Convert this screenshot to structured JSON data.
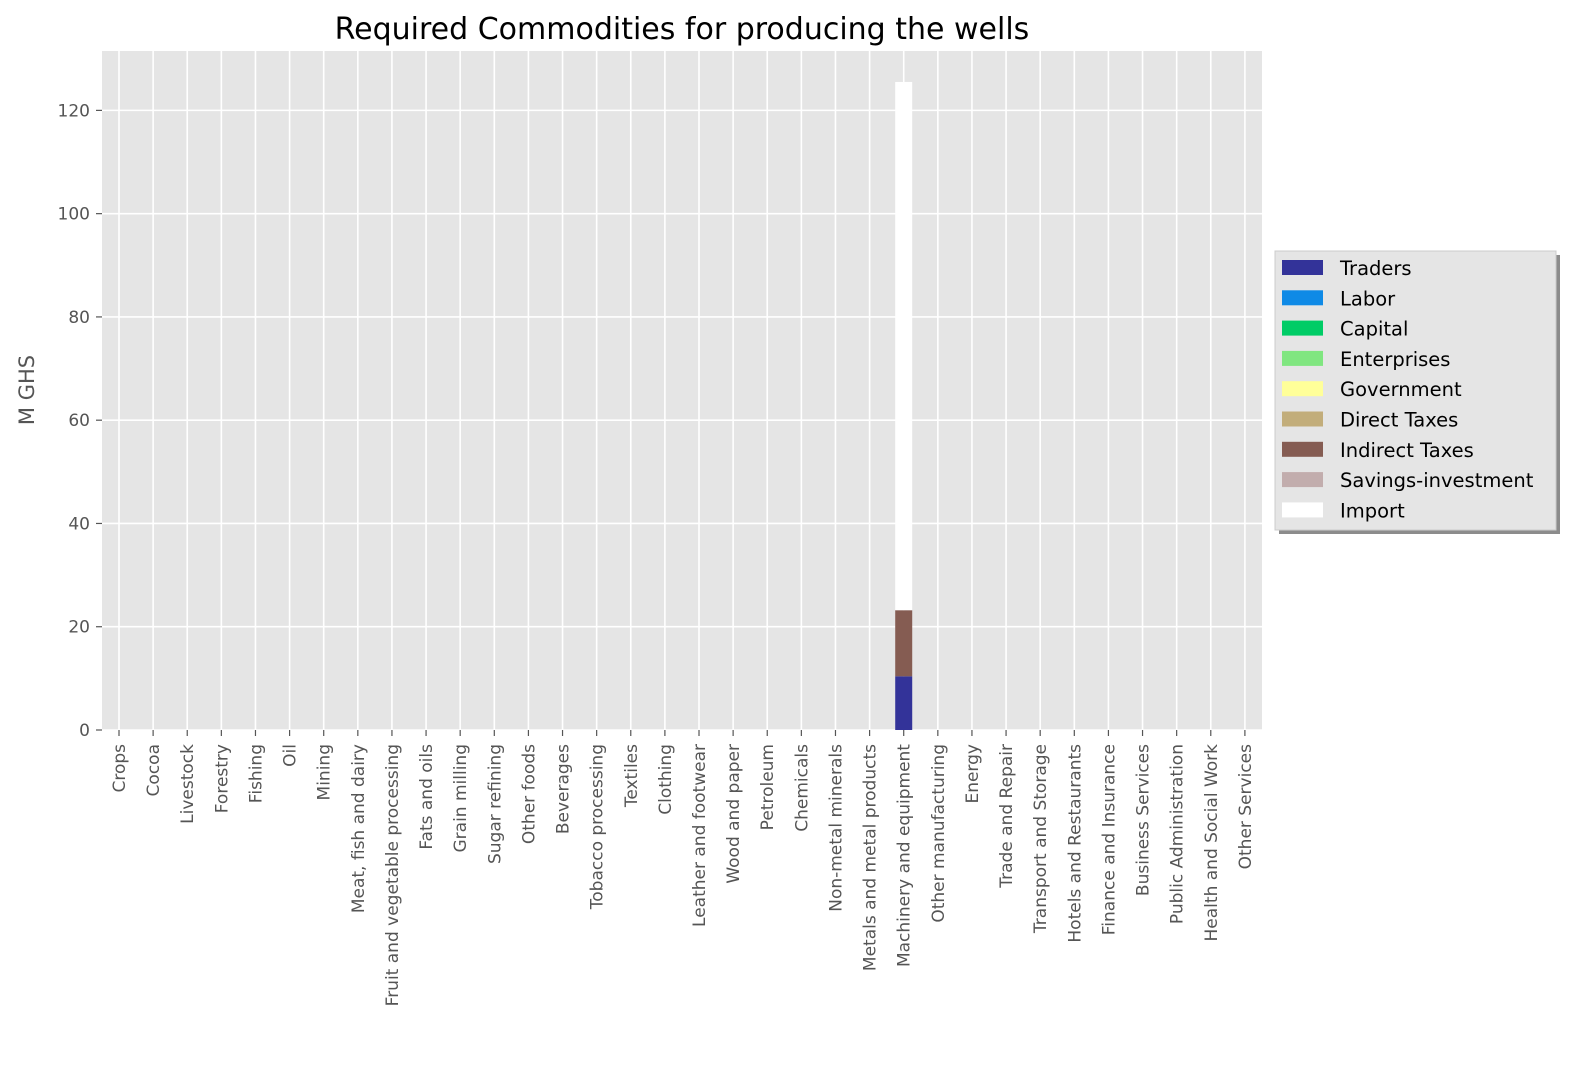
{
  "chart_data": {
    "type": "bar",
    "stacked": true,
    "title": "Required Commodities for producing the wells",
    "xlabel": "",
    "ylabel": "M GHS",
    "ylim": [
      0,
      131.5
    ],
    "yticks": [
      0,
      20,
      40,
      60,
      80,
      100,
      120
    ],
    "grid": true,
    "legend_position": "center-right, outside plot",
    "background": "#e5e5e5",
    "categories": [
      "Crops",
      "Cocoa",
      "Livestock",
      "Forestry",
      "Fishing",
      "Oil",
      "Mining",
      "Meat, fish and dairy",
      "Fruit and vegetable processing",
      "Fats and oils",
      "Grain milling",
      "Sugar refining",
      "Other foods",
      "Beverages",
      "Tobacco processing",
      "Textiles",
      "Clothing",
      "Leather and footwear",
      "Wood and paper",
      "Petroleum",
      "Chemicals",
      "Non-metal minerals",
      "Metals and metal products",
      "Machinery and equipment",
      "Other manufacturing",
      "Energy",
      "Trade and Repair",
      "Transport and Storage",
      "Hotels and Restaurants",
      "Finance and Insurance",
      "Business Services",
      "Public Administration",
      "Health and Social Work",
      "Other Services"
    ],
    "series": [
      {
        "name": "Traders",
        "color": "#333399",
        "values": [
          0,
          0,
          0,
          0,
          0,
          0,
          0,
          0,
          0,
          0,
          0,
          0,
          0,
          0,
          0,
          0,
          0,
          0,
          0,
          0,
          0,
          0,
          0,
          10.4,
          0,
          0,
          0,
          0,
          0,
          0,
          0,
          0,
          0,
          0
        ]
      },
      {
        "name": "Labor",
        "color": "#0f8ae6",
        "values": [
          0,
          0,
          0,
          0,
          0,
          0,
          0,
          0,
          0,
          0,
          0,
          0,
          0,
          0,
          0,
          0,
          0,
          0,
          0,
          0,
          0,
          0,
          0,
          0,
          0,
          0,
          0,
          0,
          0,
          0,
          0,
          0,
          0,
          0
        ]
      },
      {
        "name": "Capital",
        "color": "#00cc66",
        "values": [
          0,
          0,
          0,
          0,
          0,
          0,
          0,
          0,
          0,
          0,
          0,
          0,
          0,
          0,
          0,
          0,
          0,
          0,
          0,
          0,
          0,
          0,
          0,
          0,
          0,
          0,
          0,
          0,
          0,
          0,
          0,
          0,
          0,
          0
        ]
      },
      {
        "name": "Enterprises",
        "color": "#80e680",
        "values": [
          0,
          0,
          0,
          0,
          0,
          0,
          0,
          0,
          0,
          0,
          0,
          0,
          0,
          0,
          0,
          0,
          0,
          0,
          0,
          0,
          0,
          0,
          0,
          0,
          0,
          0,
          0,
          0,
          0,
          0,
          0,
          0,
          0,
          0
        ]
      },
      {
        "name": "Government",
        "color": "#ffff99",
        "values": [
          0,
          0,
          0,
          0,
          0,
          0,
          0,
          0,
          0,
          0,
          0,
          0,
          0,
          0,
          0,
          0,
          0,
          0,
          0,
          0,
          0,
          0,
          0,
          0,
          0,
          0,
          0,
          0,
          0,
          0,
          0,
          0,
          0,
          0
        ]
      },
      {
        "name": "Direct Taxes",
        "color": "#c2ad7a",
        "values": [
          0,
          0,
          0,
          0,
          0,
          0,
          0,
          0,
          0,
          0,
          0,
          0,
          0,
          0,
          0,
          0,
          0,
          0,
          0,
          0,
          0,
          0,
          0,
          0,
          0,
          0,
          0,
          0,
          0,
          0,
          0,
          0,
          0,
          0
        ]
      },
      {
        "name": "Indirect Taxes",
        "color": "#855c52",
        "values": [
          0,
          0,
          0,
          0,
          0,
          0,
          0,
          0,
          0,
          0,
          0,
          0,
          0,
          0,
          0,
          0,
          0,
          0,
          0,
          0,
          0,
          0,
          0,
          12.8,
          0,
          0,
          0,
          0,
          0,
          0,
          0,
          0,
          0,
          0
        ]
      },
      {
        "name": "Savings-investment",
        "color": "#c2adad",
        "values": [
          0,
          0,
          0,
          0,
          0,
          0,
          0,
          0,
          0,
          0,
          0,
          0,
          0,
          0,
          0,
          0,
          0,
          0,
          0,
          0,
          0,
          0,
          0,
          0,
          0,
          0,
          0,
          0,
          0,
          0,
          0,
          0,
          0,
          0
        ]
      },
      {
        "name": "Import",
        "color": "#ffffff",
        "values": [
          0,
          0,
          0,
          0,
          0,
          0,
          0,
          0,
          0,
          0,
          0,
          0,
          0,
          0,
          0,
          0,
          0,
          0,
          0,
          0,
          0,
          0,
          0,
          102.3,
          0,
          0,
          0,
          0,
          0,
          0,
          0,
          0,
          0,
          0
        ]
      }
    ]
  }
}
